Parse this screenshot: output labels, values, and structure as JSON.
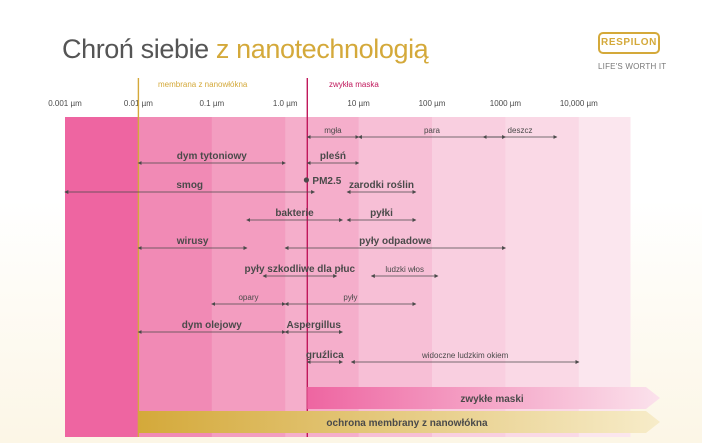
{
  "header": {
    "title_main": "Chroń siebie",
    "title_highlight": "z nanotechnologią"
  },
  "logo": {
    "brand": "RESPILON",
    "tagline": "LIFE'S WORTH IT"
  },
  "markers": {
    "membrane_label": "membrana z nanowłókna",
    "membrane_um": 0.01,
    "mask_label": "zwykła maska",
    "mask_um": 2
  },
  "scale": {
    "ticks": [
      {
        "label": "0.001 µm",
        "um": 0.001
      },
      {
        "label": "0.01 µm",
        "um": 0.01
      },
      {
        "label": "0.1 µm",
        "um": 0.1
      },
      {
        "label": "1.0 µm",
        "um": 1
      },
      {
        "label": "10 µm",
        "um": 10
      },
      {
        "label": "100 µm",
        "um": 100
      },
      {
        "label": "1000 µm",
        "um": 1000
      },
      {
        "label": "10,000 µm",
        "um": 10000
      }
    ]
  },
  "colors": {
    "band_darkest": "#ee65a1",
    "band_lightest": "#fbe6ee",
    "membrane": "#d4a93a",
    "mask": "#c0185c",
    "arrow": "#4a4a4a",
    "label": "#4a4a4a"
  },
  "particles": [
    {
      "label": "mgła",
      "from_um": 2,
      "to_um": 10,
      "weight": "normal"
    },
    {
      "label": "para",
      "from_um": 10,
      "to_um": 1000,
      "weight": "normal"
    },
    {
      "label": "deszcz",
      "from_um": 500,
      "to_um": 5000,
      "weight": "normal"
    },
    {
      "label": "dym tytoniowy",
      "from_um": 0.01,
      "to_um": 1,
      "weight": "bold"
    },
    {
      "label": "pleśń",
      "from_um": 2,
      "to_um": 10,
      "weight": "bold"
    },
    {
      "label": "smog",
      "from_um": 0.001,
      "to_um": 2.5,
      "weight": "bold"
    },
    {
      "label": "zarodki roślin",
      "from_um": 7,
      "to_um": 60,
      "weight": "bold"
    },
    {
      "label": "bakterie",
      "from_um": 0.3,
      "to_um": 6,
      "weight": "bold"
    },
    {
      "label": "pyłki",
      "from_um": 7,
      "to_um": 60,
      "weight": "bold"
    },
    {
      "label": "wirusy",
      "from_um": 0.01,
      "to_um": 0.3,
      "weight": "bold"
    },
    {
      "label": "pyły odpadowe",
      "from_um": 1,
      "to_um": 1000,
      "weight": "bold"
    },
    {
      "label": "pyły szkodliwe dla płuc",
      "from_um": 0.5,
      "to_um": 5,
      "weight": "bold"
    },
    {
      "label": "ludzki włos",
      "from_um": 15,
      "to_um": 120,
      "weight": "normal"
    },
    {
      "label": "opary",
      "from_um": 0.1,
      "to_um": 1,
      "weight": "normal"
    },
    {
      "label": "pyły",
      "from_um": 1,
      "to_um": 60,
      "weight": "normal"
    },
    {
      "label": "dym olejowy",
      "from_um": 0.01,
      "to_um": 1,
      "weight": "bold"
    },
    {
      "label": "Aspergillus",
      "from_um": 1,
      "to_um": 6,
      "weight": "bold"
    },
    {
      "label": "gruźlica",
      "from_um": 2,
      "to_um": 6,
      "weight": "bold"
    },
    {
      "label": "widoczne ludzkim okiem",
      "from_um": 8,
      "to_um": 10000,
      "weight": "normal"
    }
  ],
  "pm25": {
    "label": "PM2.5",
    "um": 2.5
  },
  "protection": [
    {
      "label": "zwykłe maski",
      "from_um": 2,
      "color": "#ee65a1"
    },
    {
      "label": "ochrona membrany z nanowłókna",
      "from_um": 0.01,
      "color": "#d4a93a"
    }
  ]
}
